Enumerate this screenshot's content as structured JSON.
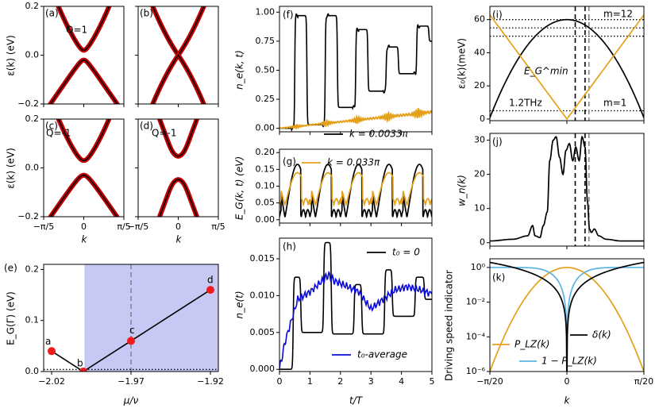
{
  "chart_data": [
    {
      "id": "a",
      "type": "line",
      "panel_label": "(a)",
      "annotation": "Q=1",
      "xlim": [
        -0.6283,
        0.6283
      ],
      "ylim": [
        -0.2,
        0.2
      ],
      "ylabel": "ε(k) (eV)",
      "xlabel": "",
      "yticks": [
        -0.2,
        0.0,
        0.2
      ],
      "ytick_labels": [
        "−0.2",
        "0.0",
        "0.2"
      ],
      "xticks": [
        -0.6283,
        0,
        0.6283
      ],
      "xtick_labels": [],
      "bands": {
        "kind": "gap",
        "gap": 0.02,
        "slope": 1.4,
        "coef": 0.3
      },
      "series": [
        {
          "name": "exact bands",
          "color": "#b00000",
          "style": "thick"
        },
        {
          "name": "effective model",
          "color": "#000000",
          "style": "thin"
        }
      ]
    },
    {
      "id": "b",
      "type": "line",
      "panel_label": "(b)",
      "annotation": "",
      "xlim": [
        -0.6283,
        0.6283
      ],
      "ylim": [
        -0.2,
        0.2
      ],
      "yticks": [
        -0.2,
        0.0,
        0.2
      ],
      "ytick_labels": [],
      "xticks": [
        -0.6283,
        0,
        0.6283
      ],
      "xtick_labels": [],
      "bands": {
        "kind": "cross",
        "gap": 0.0,
        "slope": 1.4,
        "coef": 0.3
      }
    },
    {
      "id": "c",
      "type": "line",
      "panel_label": "(c)",
      "annotation": "Q=-1",
      "xlim": [
        -0.6283,
        0.6283
      ],
      "ylim": [
        -0.2,
        0.2
      ],
      "ylabel": "ε(k) (eV)",
      "xlabel": "k",
      "yticks": [
        -0.2,
        0.0,
        0.2
      ],
      "ytick_labels": [
        "−0.2",
        "0.0",
        "0.2"
      ],
      "xticks": [
        -0.6283,
        0,
        0.6283
      ],
      "xtick_labels": [
        "−π/5",
        "0",
        "π/5"
      ],
      "bands": {
        "kind": "gap",
        "gap": 0.03,
        "slope": 1.4,
        "coef": 0.3
      }
    },
    {
      "id": "d",
      "type": "line",
      "panel_label": "(d)",
      "annotation": "Q=-1",
      "xlim": [
        -0.6283,
        0.6283
      ],
      "ylim": [
        -0.2,
        0.2
      ],
      "xlabel": "k",
      "yticks": [
        -0.2,
        0.0,
        0.2
      ],
      "ytick_labels": [],
      "xticks": [
        -0.6283,
        0,
        0.6283
      ],
      "xtick_labels": [
        "−π/5",
        "0",
        "π/5"
      ],
      "bands": {
        "kind": "dip",
        "gap": 0.08,
        "depth": 0.02,
        "width": 0.22,
        "slope": 1.4,
        "coef": 0.3
      }
    },
    {
      "id": "e",
      "type": "line",
      "panel_label": "(e)",
      "xlim": [
        -2.025,
        -1.915
      ],
      "ylim": [
        0,
        0.21
      ],
      "xlabel": "μ/ν",
      "ylabel": "E_G(Γ) (eV)",
      "xticks": [
        -2.02,
        -1.97,
        -1.92
      ],
      "xtick_labels": [
        "−2.02",
        "−1.97",
        "−1.92"
      ],
      "yticks": [
        0.0,
        0.1,
        0.2
      ],
      "ytick_labels": [
        "0.0",
        "0.1",
        "0.2"
      ],
      "shaded_region": {
        "x_from": -1.999,
        "x_to": -1.915,
        "color": "#c8c8f5"
      },
      "vline": {
        "x": -1.97,
        "color": "#888888",
        "style": "dashed"
      },
      "hline": {
        "y": 0.004,
        "color": "#000000",
        "style": "dotted"
      },
      "x": [
        -2.02,
        -2.0,
        -1.97,
        -1.92
      ],
      "y": [
        0.04,
        0.0,
        0.06,
        0.16
      ],
      "points": [
        {
          "label": "a",
          "x": -2.02,
          "y": 0.04
        },
        {
          "label": "b",
          "x": -2.0,
          "y": 0.0
        },
        {
          "label": "c",
          "x": -1.97,
          "y": 0.06
        },
        {
          "label": "d",
          "x": -1.92,
          "y": 0.16
        }
      ],
      "point_color": "#ee1c1c"
    },
    {
      "id": "f",
      "type": "line",
      "panel_label": "(f)",
      "xlim": [
        0,
        5
      ],
      "ylim": [
        -0.03,
        1.05
      ],
      "ylabel": "n_e(k, t)",
      "yticks": [
        0.0,
        0.25,
        0.5,
        0.75,
        1.0
      ],
      "ytick_labels": [
        "0.00",
        "0.25",
        "0.50",
        "0.75",
        "1.00"
      ],
      "xticks": [
        0,
        1,
        2,
        3,
        4,
        5
      ],
      "xtick_labels": [],
      "series": [
        {
          "name": "k = 0.0033π",
          "color": "#000000",
          "steps": [
            [
              0,
              0.0
            ],
            [
              0.5,
              0.97
            ],
            [
              0.9,
              0.03
            ],
            [
              1.5,
              0.97
            ],
            [
              1.9,
              0.18
            ],
            [
              2.5,
              0.85
            ],
            [
              2.9,
              0.32
            ],
            [
              3.5,
              0.7
            ],
            [
              3.9,
              0.47
            ],
            [
              4.5,
              0.88
            ],
            [
              4.9,
              0.75
            ]
          ]
        },
        {
          "name": "k = 0.033π",
          "color": "#e5a019",
          "ramp": [
            [
              0,
              0.0
            ],
            [
              1,
              0.02
            ],
            [
              2,
              0.06
            ],
            [
              3,
              0.09
            ],
            [
              4,
              0.12
            ],
            [
              5,
              0.13
            ]
          ]
        }
      ],
      "legend": [
        "k = 0.0033π"
      ]
    },
    {
      "id": "g",
      "type": "line",
      "panel_label": "(g)",
      "xlim": [
        0,
        5
      ],
      "ylim": [
        -0.01,
        0.21
      ],
      "ylabel": "E_G(k, t) (eV)",
      "yticks": [
        0.0,
        0.05,
        0.1,
        0.15,
        0.2
      ],
      "ytick_labels": [
        "0.00",
        "0.05",
        "0.10",
        "0.15",
        "0.20"
      ],
      "xticks": [
        0,
        1,
        2,
        3,
        4,
        5
      ],
      "xtick_labels": [],
      "series": [
        {
          "name": "k = 0.0033π",
          "color": "#000000",
          "peak": 0.165,
          "floor": 0.008
        },
        {
          "name": "k = 0.033π",
          "color": "#e5a019",
          "peak": 0.14,
          "floor": 0.045
        }
      ],
      "legend": [
        "k = 0.033π"
      ]
    },
    {
      "id": "h",
      "type": "line",
      "panel_label": "(h)",
      "xlim": [
        0,
        5
      ],
      "ylim": [
        -0.0003,
        0.0178
      ],
      "xlabel": "t/T",
      "ylabel": "n_e(t)",
      "yticks": [
        0.0,
        0.005,
        0.01,
        0.015
      ],
      "ytick_labels": [
        "0.000",
        "0.005",
        "0.010",
        "0.015"
      ],
      "xticks": [
        0,
        1,
        2,
        3,
        4,
        5
      ],
      "xtick_labels": [
        "0",
        "1",
        "2",
        "3",
        "4",
        "5"
      ],
      "series": [
        {
          "name": "t₀ = 0",
          "color": "#000000",
          "steps": [
            [
              0,
              0.0
            ],
            [
              0.45,
              0.0125
            ],
            [
              0.7,
              0.005
            ],
            [
              1.45,
              0.0172
            ],
            [
              1.7,
              0.0048
            ],
            [
              2.45,
              0.0115
            ],
            [
              2.7,
              0.0048
            ],
            [
              3.45,
              0.0135
            ],
            [
              3.7,
              0.0072
            ],
            [
              4.45,
              0.0125
            ],
            [
              4.75,
              0.0095
            ]
          ]
        },
        {
          "name": "t₀-average",
          "color": "#0a0ad8",
          "points": [
            [
              0,
              0.0
            ],
            [
              0.2,
              0.004
            ],
            [
              0.6,
              0.0095
            ],
            [
              1.0,
              0.0105
            ],
            [
              1.4,
              0.012
            ],
            [
              1.6,
              0.0128
            ],
            [
              1.8,
              0.012
            ],
            [
              2.2,
              0.0113
            ],
            [
              2.6,
              0.0105
            ],
            [
              3.0,
              0.0082
            ],
            [
              3.4,
              0.0095
            ],
            [
              3.8,
              0.0108
            ],
            [
              4.2,
              0.0112
            ],
            [
              4.6,
              0.0108
            ],
            [
              5.0,
              0.0102
            ]
          ]
        }
      ],
      "legend": [
        "t₀ = 0",
        "t₀-average"
      ]
    },
    {
      "id": "i",
      "type": "line",
      "panel_label": "(i)",
      "xlim": [
        -0.1571,
        0.1571
      ],
      "ylim": [
        -1,
        68
      ],
      "ylabel": "ε₀(k)(meV)",
      "yticks": [
        0,
        20,
        40,
        60
      ],
      "ytick_labels": [
        "0",
        "20",
        "40",
        "60"
      ],
      "xticks": [
        -0.1571,
        0,
        0.1571
      ],
      "xtick_labels": [],
      "hlines": [
        55,
        60,
        50,
        5
      ],
      "annotations": [
        "m=12",
        "m=1",
        "1.2THz",
        "E_G^min"
      ],
      "vlines": [
        {
          "x": 0.017,
          "color": "#000000"
        },
        {
          "x": 0.037,
          "color": "#000000"
        },
        {
          "x": 0.045,
          "color": "#888888"
        }
      ],
      "series": [
        {
          "name": "ε₀(k)",
          "color": "#000000",
          "formula": "60 - 2400 k^2"
        },
        {
          "name": "E_G^min",
          "color": "#e5a019",
          "formula": "400 |k|"
        }
      ]
    },
    {
      "id": "j",
      "type": "line",
      "panel_label": "(j)",
      "xlim": [
        -0.1571,
        0.1571
      ],
      "ylim": [
        -1,
        32
      ],
      "ylabel": "w_n(k)",
      "yticks": [
        0,
        10,
        20,
        30
      ],
      "ytick_labels": [
        "0",
        "10",
        "20",
        "30"
      ],
      "xticks": [
        -0.1571,
        0,
        0.1571
      ],
      "xtick_labels": [],
      "vlines": [
        {
          "x": 0.017,
          "color": "#000000"
        },
        {
          "x": 0.037,
          "color": "#000000"
        },
        {
          "x": 0.045,
          "color": "#888888"
        }
      ],
      "series": [
        {
          "name": "w_n(k)",
          "color": "#000000",
          "points": [
            [
              -0.157,
              0.5
            ],
            [
              -0.11,
              1
            ],
            [
              -0.08,
              2
            ],
            [
              -0.07,
              5
            ],
            [
              -0.065,
              2
            ],
            [
              -0.055,
              1.5
            ],
            [
              -0.048,
              5
            ],
            [
              -0.04,
              9
            ],
            [
              -0.035,
              24
            ],
            [
              -0.028,
              30
            ],
            [
              -0.022,
              31
            ],
            [
              -0.015,
              25
            ],
            [
              -0.008,
              20
            ],
            [
              -0.002,
              27
            ],
            [
              0.005,
              29
            ],
            [
              0.012,
              24
            ],
            [
              0.018,
              28
            ],
            [
              0.025,
              24
            ],
            [
              0.031,
              31
            ],
            [
              0.037,
              28
            ],
            [
              0.042,
              12
            ],
            [
              0.046,
              4
            ],
            [
              0.05,
              3
            ],
            [
              0.056,
              4
            ],
            [
              0.065,
              2
            ],
            [
              0.08,
              1
            ],
            [
              0.11,
              0.5
            ],
            [
              0.157,
              0.5
            ]
          ]
        }
      ]
    },
    {
      "id": "k",
      "type": "line",
      "panel_label": "(k)",
      "xlim": [
        -0.1571,
        0.1571
      ],
      "ylim_log10": [
        -6,
        0.5
      ],
      "xlabel": "k",
      "ylabel": "Driving speed indicator",
      "yticks": [
        1e-06,
        0.0001,
        0.01,
        1
      ],
      "ytick_labels": [
        "10⁻⁶",
        "10⁻⁴",
        "10⁻²",
        "10⁰"
      ],
      "xticks": [
        -0.1571,
        0,
        0.1571
      ],
      "xtick_labels": [
        "−π/20",
        "0",
        "π/20"
      ],
      "series": [
        {
          "name": "δ(k)",
          "color": "#000000",
          "formula": "45 |k|^1.9 ... dips at k=0"
        },
        {
          "name": "P_LZ(k)",
          "color": "#e5a019",
          "formula": "exp(-1e3 k^2)"
        },
        {
          "name": "1 − P_LZ(k)",
          "color": "#5ab4e0",
          "formula": "1 - exp(-1e3 k^2)"
        }
      ],
      "legend": [
        "P_LZ(k)",
        "δ(k)",
        "1 − P_LZ(k)"
      ]
    }
  ],
  "text": {
    "a": "(a)",
    "b": "(b)",
    "c": "(c)",
    "d": "(d)",
    "e": "(e)",
    "f": "(f)",
    "g": "(g)",
    "h": "(h)",
    "i": "(i)",
    "j": "(j)",
    "k": "(k)",
    "q1": "Q=1",
    "qm1c": "Q=-1",
    "qm1d": "Q=-1",
    "ylab_ab": "ε(k) (eV)",
    "ylab_cd": "ε(k) (eV)",
    "xlab_k": "k",
    "ylab_e": "E_G(Γ) (eV)",
    "xlab_e": "μ/ν",
    "ylab_f": "n_e(k, t)",
    "ylab_g": "E_G(k, t) (eV)",
    "ylab_h": "n_e(t)",
    "xlab_h": "t/T",
    "ylab_i": "ε₀(k)(meV)",
    "ylab_j": "w_n(k)",
    "ylab_k": "Driving speed indicator",
    "leg_f": "k = 0.0033π",
    "leg_g": "k = 0.033π",
    "leg_h1": "t₀ = 0",
    "leg_h2": "t₀-average",
    "m12": "m=12",
    "m1": "m=1",
    "thz": "1.2THz",
    "egmin": "E_G^min",
    "leg_plz": "P_LZ(k)",
    "leg_delta": "δ(k)",
    "leg_1mp": "1 − P_LZ(k)",
    "pa": "a",
    "pb": "b",
    "pc": "c",
    "pd": "d"
  }
}
